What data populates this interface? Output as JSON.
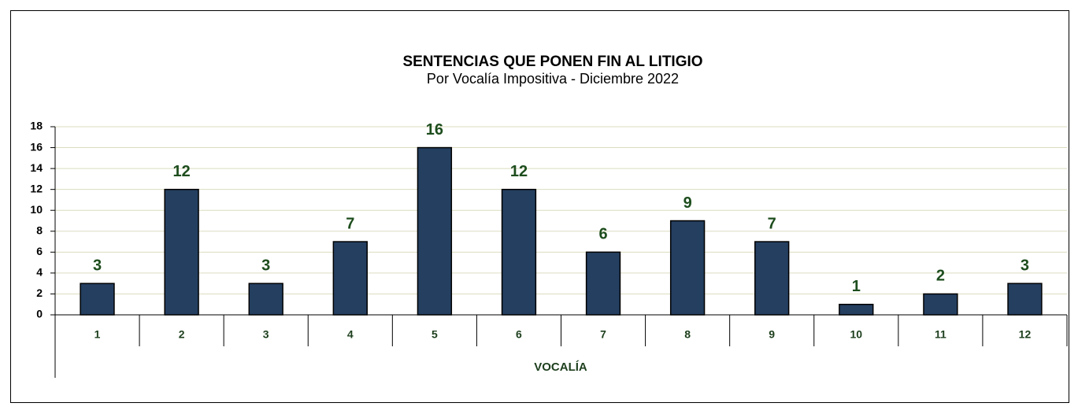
{
  "chart_data": {
    "type": "bar",
    "title": "SENTENCIAS QUE PONEN FIN AL LITIGIO",
    "subtitle": "Por Vocalía Impositiva - Diciembre 2022",
    "x_label": "VOCALÍA",
    "categories": [
      "1",
      "2",
      "3",
      "4",
      "5",
      "6",
      "7",
      "8",
      "9",
      "10",
      "11",
      "12"
    ],
    "values": [
      3,
      12,
      3,
      7,
      16,
      12,
      6,
      9,
      7,
      1,
      2,
      3
    ],
    "color": "#243f60",
    "ylim": [
      0,
      18
    ],
    "yticks": [
      0,
      2,
      4,
      6,
      8,
      10,
      12,
      14,
      16,
      18
    ],
    "grid": true
  }
}
